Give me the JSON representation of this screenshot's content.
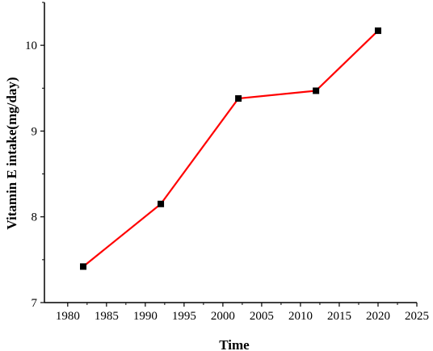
{
  "chart_data": {
    "type": "line",
    "title": "",
    "xlabel": "Time",
    "ylabel": "Vitamin E intake(mg/day)",
    "xlim": [
      1977,
      2025
    ],
    "ylim": [
      7,
      10.5
    ],
    "x_ticks": [
      1980,
      1985,
      1990,
      1995,
      2000,
      2005,
      2010,
      2015,
      2020,
      2025
    ],
    "y_ticks": [
      7,
      8,
      9,
      10
    ],
    "grid": false,
    "legend": "none",
    "series": [
      {
        "x": [
          1982,
          1992,
          2002,
          2012,
          2020
        ],
        "y": [
          7.42,
          8.15,
          9.38,
          9.47,
          10.17
        ],
        "line_color": "#ff0000",
        "marker": "square",
        "marker_color": "#000000"
      }
    ]
  }
}
